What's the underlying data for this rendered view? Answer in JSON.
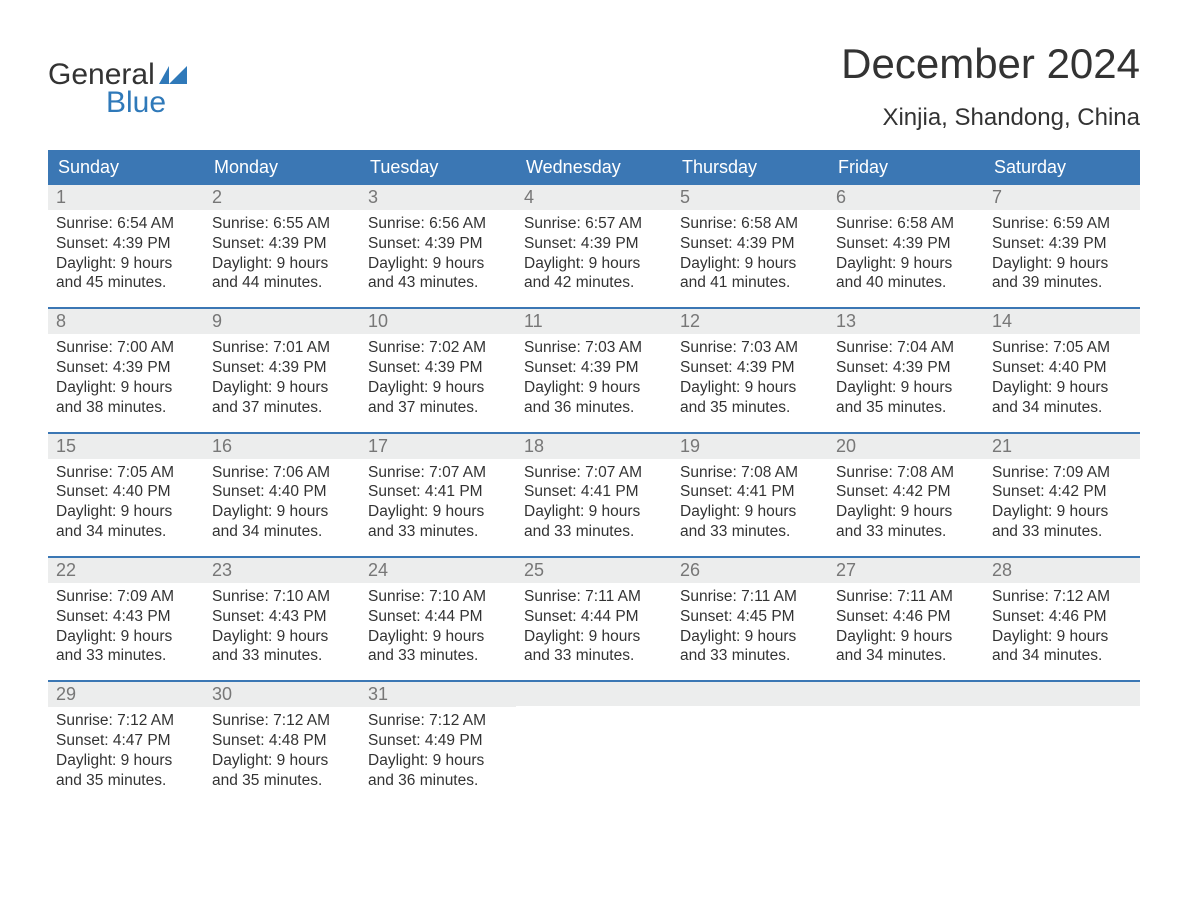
{
  "logo": {
    "word1": "General",
    "word2": "Blue"
  },
  "title": "December 2024",
  "subtitle": "Xinjia, Shandong, China",
  "colors": {
    "header_bg": "#3b77b4",
    "header_text": "#ffffff",
    "daynum_bg": "#eceded",
    "daynum_text": "#777777",
    "body_text": "#333333",
    "week_border": "#3b77b4",
    "logo_accent": "#2f79b9"
  },
  "typography": {
    "title_fontsize": 42,
    "subtitle_fontsize": 24,
    "header_fontsize": 18,
    "daynum_fontsize": 18,
    "body_fontsize": 15.5,
    "logo_fontsize": 30
  },
  "layout": {
    "columns": 7,
    "rows": 5,
    "daynum_bar_full_width": true
  },
  "weekdays": [
    "Sunday",
    "Monday",
    "Tuesday",
    "Wednesday",
    "Thursday",
    "Friday",
    "Saturday"
  ],
  "weeks": [
    [
      {
        "day": "1",
        "sunrise": "Sunrise: 6:54 AM",
        "sunset": "Sunset: 4:39 PM",
        "d1": "Daylight: 9 hours",
        "d2": "and 45 minutes."
      },
      {
        "day": "2",
        "sunrise": "Sunrise: 6:55 AM",
        "sunset": "Sunset: 4:39 PM",
        "d1": "Daylight: 9 hours",
        "d2": "and 44 minutes."
      },
      {
        "day": "3",
        "sunrise": "Sunrise: 6:56 AM",
        "sunset": "Sunset: 4:39 PM",
        "d1": "Daylight: 9 hours",
        "d2": "and 43 minutes."
      },
      {
        "day": "4",
        "sunrise": "Sunrise: 6:57 AM",
        "sunset": "Sunset: 4:39 PM",
        "d1": "Daylight: 9 hours",
        "d2": "and 42 minutes."
      },
      {
        "day": "5",
        "sunrise": "Sunrise: 6:58 AM",
        "sunset": "Sunset: 4:39 PM",
        "d1": "Daylight: 9 hours",
        "d2": "and 41 minutes."
      },
      {
        "day": "6",
        "sunrise": "Sunrise: 6:58 AM",
        "sunset": "Sunset: 4:39 PM",
        "d1": "Daylight: 9 hours",
        "d2": "and 40 minutes."
      },
      {
        "day": "7",
        "sunrise": "Sunrise: 6:59 AM",
        "sunset": "Sunset: 4:39 PM",
        "d1": "Daylight: 9 hours",
        "d2": "and 39 minutes."
      }
    ],
    [
      {
        "day": "8",
        "sunrise": "Sunrise: 7:00 AM",
        "sunset": "Sunset: 4:39 PM",
        "d1": "Daylight: 9 hours",
        "d2": "and 38 minutes."
      },
      {
        "day": "9",
        "sunrise": "Sunrise: 7:01 AM",
        "sunset": "Sunset: 4:39 PM",
        "d1": "Daylight: 9 hours",
        "d2": "and 37 minutes."
      },
      {
        "day": "10",
        "sunrise": "Sunrise: 7:02 AM",
        "sunset": "Sunset: 4:39 PM",
        "d1": "Daylight: 9 hours",
        "d2": "and 37 minutes."
      },
      {
        "day": "11",
        "sunrise": "Sunrise: 7:03 AM",
        "sunset": "Sunset: 4:39 PM",
        "d1": "Daylight: 9 hours",
        "d2": "and 36 minutes."
      },
      {
        "day": "12",
        "sunrise": "Sunrise: 7:03 AM",
        "sunset": "Sunset: 4:39 PM",
        "d1": "Daylight: 9 hours",
        "d2": "and 35 minutes."
      },
      {
        "day": "13",
        "sunrise": "Sunrise: 7:04 AM",
        "sunset": "Sunset: 4:39 PM",
        "d1": "Daylight: 9 hours",
        "d2": "and 35 minutes."
      },
      {
        "day": "14",
        "sunrise": "Sunrise: 7:05 AM",
        "sunset": "Sunset: 4:40 PM",
        "d1": "Daylight: 9 hours",
        "d2": "and 34 minutes."
      }
    ],
    [
      {
        "day": "15",
        "sunrise": "Sunrise: 7:05 AM",
        "sunset": "Sunset: 4:40 PM",
        "d1": "Daylight: 9 hours",
        "d2": "and 34 minutes."
      },
      {
        "day": "16",
        "sunrise": "Sunrise: 7:06 AM",
        "sunset": "Sunset: 4:40 PM",
        "d1": "Daylight: 9 hours",
        "d2": "and 34 minutes."
      },
      {
        "day": "17",
        "sunrise": "Sunrise: 7:07 AM",
        "sunset": "Sunset: 4:41 PM",
        "d1": "Daylight: 9 hours",
        "d2": "and 33 minutes."
      },
      {
        "day": "18",
        "sunrise": "Sunrise: 7:07 AM",
        "sunset": "Sunset: 4:41 PM",
        "d1": "Daylight: 9 hours",
        "d2": "and 33 minutes."
      },
      {
        "day": "19",
        "sunrise": "Sunrise: 7:08 AM",
        "sunset": "Sunset: 4:41 PM",
        "d1": "Daylight: 9 hours",
        "d2": "and 33 minutes."
      },
      {
        "day": "20",
        "sunrise": "Sunrise: 7:08 AM",
        "sunset": "Sunset: 4:42 PM",
        "d1": "Daylight: 9 hours",
        "d2": "and 33 minutes."
      },
      {
        "day": "21",
        "sunrise": "Sunrise: 7:09 AM",
        "sunset": "Sunset: 4:42 PM",
        "d1": "Daylight: 9 hours",
        "d2": "and 33 minutes."
      }
    ],
    [
      {
        "day": "22",
        "sunrise": "Sunrise: 7:09 AM",
        "sunset": "Sunset: 4:43 PM",
        "d1": "Daylight: 9 hours",
        "d2": "and 33 minutes."
      },
      {
        "day": "23",
        "sunrise": "Sunrise: 7:10 AM",
        "sunset": "Sunset: 4:43 PM",
        "d1": "Daylight: 9 hours",
        "d2": "and 33 minutes."
      },
      {
        "day": "24",
        "sunrise": "Sunrise: 7:10 AM",
        "sunset": "Sunset: 4:44 PM",
        "d1": "Daylight: 9 hours",
        "d2": "and 33 minutes."
      },
      {
        "day": "25",
        "sunrise": "Sunrise: 7:11 AM",
        "sunset": "Sunset: 4:44 PM",
        "d1": "Daylight: 9 hours",
        "d2": "and 33 minutes."
      },
      {
        "day": "26",
        "sunrise": "Sunrise: 7:11 AM",
        "sunset": "Sunset: 4:45 PM",
        "d1": "Daylight: 9 hours",
        "d2": "and 33 minutes."
      },
      {
        "day": "27",
        "sunrise": "Sunrise: 7:11 AM",
        "sunset": "Sunset: 4:46 PM",
        "d1": "Daylight: 9 hours",
        "d2": "and 34 minutes."
      },
      {
        "day": "28",
        "sunrise": "Sunrise: 7:12 AM",
        "sunset": "Sunset: 4:46 PM",
        "d1": "Daylight: 9 hours",
        "d2": "and 34 minutes."
      }
    ],
    [
      {
        "day": "29",
        "sunrise": "Sunrise: 7:12 AM",
        "sunset": "Sunset: 4:47 PM",
        "d1": "Daylight: 9 hours",
        "d2": "and 35 minutes."
      },
      {
        "day": "30",
        "sunrise": "Sunrise: 7:12 AM",
        "sunset": "Sunset: 4:48 PM",
        "d1": "Daylight: 9 hours",
        "d2": "and 35 minutes."
      },
      {
        "day": "31",
        "sunrise": "Sunrise: 7:12 AM",
        "sunset": "Sunset: 4:49 PM",
        "d1": "Daylight: 9 hours",
        "d2": "and 36 minutes."
      },
      {
        "empty": true
      },
      {
        "empty": true
      },
      {
        "empty": true
      },
      {
        "empty": true
      }
    ]
  ]
}
